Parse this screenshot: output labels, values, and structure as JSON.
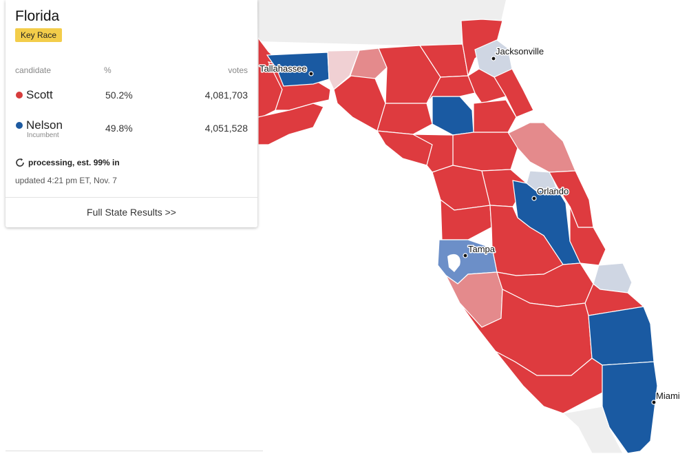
{
  "state": "Florida",
  "badge": "Key Race",
  "headers": {
    "candidate": "candidate",
    "percent": "%",
    "votes": "votes"
  },
  "candidates": [
    {
      "name": "Scott",
      "percent": "50.2%",
      "votes": "4,081,703",
      "note": "",
      "color": "#d63c3c"
    },
    {
      "name": "Nelson",
      "percent": "49.8%",
      "votes": "4,051,528",
      "note": "Incumbent",
      "color": "#1d5aa0"
    }
  ],
  "status": "processing, est. 99% in",
  "updated": "updated 4:21 pm ET, Nov. 7",
  "link": "Full State Results >>",
  "colors": {
    "rep_strong": "#de3b3f",
    "rep_light": "#e48a8c",
    "rep_pale": "#f0d0d3",
    "dem_strong": "#1a5aa2",
    "dem_medium": "#6c8fc8",
    "tossup": "#cfd6e3",
    "neighbor": "#eeeeee"
  },
  "cities": [
    "Tallahassee",
    "Jacksonville",
    "Orlando",
    "Tampa",
    "Miami"
  ],
  "icons": {
    "refresh": "refresh-icon"
  }
}
